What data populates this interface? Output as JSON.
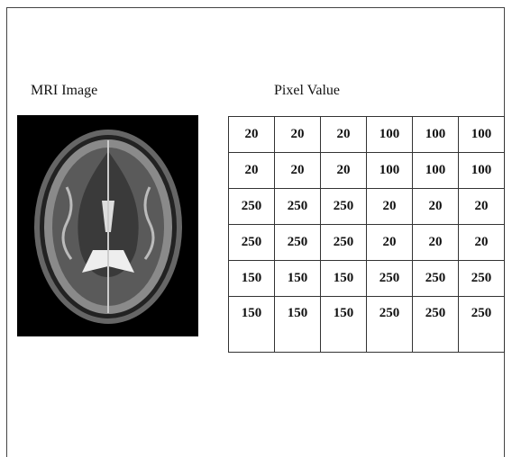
{
  "labels": {
    "image": "MRI Image",
    "table": "Pixel Value"
  },
  "table": {
    "rows": [
      [
        20,
        20,
        20,
        100,
        100,
        100
      ],
      [
        20,
        20,
        20,
        100,
        100,
        100
      ],
      [
        250,
        250,
        250,
        20,
        20,
        20
      ],
      [
        250,
        250,
        250,
        20,
        20,
        20
      ],
      [
        150,
        150,
        150,
        250,
        250,
        250
      ],
      [
        150,
        150,
        150,
        250,
        250,
        250
      ]
    ]
  }
}
